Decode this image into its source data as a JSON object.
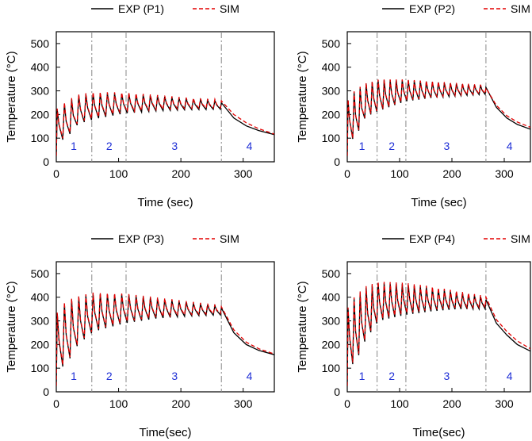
{
  "figure": {
    "colors": {
      "exp": "#000000",
      "sim": "#e30000",
      "phase_line": "#888888",
      "phase_label": "#1f2fd6"
    }
  },
  "chart_data": [
    {
      "type": "line",
      "panel": "P1",
      "xlabel": "Time (sec)",
      "ylabel": "Temperature (°C)",
      "xlim": [
        0,
        350
      ],
      "ylim": [
        0,
        550
      ],
      "xticks": [
        0,
        100,
        200,
        300
      ],
      "yticks": [
        0,
        100,
        200,
        300,
        400,
        500
      ],
      "legend": [
        "EXP (P1)",
        "SIM"
      ],
      "phase_boundaries": [
        57,
        112,
        265
      ],
      "phases": [
        {
          "label": "1",
          "x": 28
        },
        {
          "label": "2",
          "x": 85
        },
        {
          "label": "3",
          "x": 190
        },
        {
          "label": "4",
          "x": 310
        }
      ],
      "cycle_period": 11.5,
      "min_trend": [
        [
          0,
          90
        ],
        [
          15,
          95
        ],
        [
          35,
          160
        ],
        [
          60,
          180
        ],
        [
          110,
          205
        ],
        [
          160,
          215
        ],
        [
          210,
          220
        ],
        [
          262,
          222
        ]
      ],
      "max_trend": [
        [
          0,
          220
        ],
        [
          15,
          250
        ],
        [
          35,
          280
        ],
        [
          60,
          290
        ],
        [
          110,
          288
        ],
        [
          160,
          278
        ],
        [
          210,
          266
        ],
        [
          262,
          258
        ]
      ],
      "cooling": [
        [
          265,
          250
        ],
        [
          285,
          185
        ],
        [
          305,
          152
        ],
        [
          325,
          132
        ],
        [
          350,
          115
        ]
      ],
      "sim_cooling": [
        [
          265,
          258
        ],
        [
          285,
          200
        ],
        [
          305,
          165
        ],
        [
          325,
          140
        ],
        [
          350,
          117
        ]
      ],
      "sim_offset": 5
    },
    {
      "type": "line",
      "panel": "P2",
      "xlabel": "Time (sec)",
      "ylabel": "Temperature (°C)",
      "xlim": [
        0,
        350
      ],
      "ylim": [
        0,
        550
      ],
      "xticks": [
        0,
        100,
        200,
        300
      ],
      "yticks": [
        0,
        100,
        200,
        300,
        400,
        500
      ],
      "legend": [
        "EXP (P2)",
        "SIM"
      ],
      "phase_boundaries": [
        57,
        112,
        265
      ],
      "phases": [
        {
          "label": "1",
          "x": 28
        },
        {
          "label": "2",
          "x": 85
        },
        {
          "label": "3",
          "x": 190
        },
        {
          "label": "4",
          "x": 310
        }
      ],
      "cycle_period": 11.5,
      "min_trend": [
        [
          0,
          90
        ],
        [
          15,
          100
        ],
        [
          35,
          190
        ],
        [
          60,
          215
        ],
        [
          110,
          255
        ],
        [
          160,
          270
        ],
        [
          210,
          278
        ],
        [
          262,
          285
        ]
      ],
      "max_trend": [
        [
          0,
          260
        ],
        [
          15,
          300
        ],
        [
          35,
          330
        ],
        [
          60,
          345
        ],
        [
          110,
          345
        ],
        [
          160,
          338
        ],
        [
          210,
          330
        ],
        [
          262,
          322
        ]
      ],
      "cooling": [
        [
          265,
          315
        ],
        [
          285,
          230
        ],
        [
          305,
          185
        ],
        [
          325,
          158
        ],
        [
          350,
          138
        ]
      ],
      "sim_cooling": [
        [
          265,
          312
        ],
        [
          285,
          238
        ],
        [
          305,
          195
        ],
        [
          325,
          168
        ],
        [
          350,
          146
        ]
      ],
      "sim_offset": 3
    },
    {
      "type": "line",
      "panel": "P3",
      "xlabel": "Time(sec)",
      "ylabel": "Temperature (°C)",
      "xlim": [
        0,
        350
      ],
      "ylim": [
        0,
        550
      ],
      "xticks": [
        0,
        100,
        200,
        300
      ],
      "yticks": [
        0,
        100,
        200,
        300,
        400,
        500
      ],
      "legend": [
        "EXP (P3)",
        "SIM"
      ],
      "phase_boundaries": [
        57,
        112,
        265
      ],
      "phases": [
        {
          "label": "1",
          "x": 28
        },
        {
          "label": "2",
          "x": 85
        },
        {
          "label": "3",
          "x": 190
        },
        {
          "label": "4",
          "x": 310
        }
      ],
      "cycle_period": 11.5,
      "min_trend": [
        [
          0,
          100
        ],
        [
          15,
          110
        ],
        [
          35,
          200
        ],
        [
          60,
          255
        ],
        [
          110,
          290
        ],
        [
          160,
          310
        ],
        [
          210,
          320
        ],
        [
          262,
          325
        ]
      ],
      "max_trend": [
        [
          0,
          330
        ],
        [
          15,
          380
        ],
        [
          35,
          400
        ],
        [
          60,
          415
        ],
        [
          110,
          410
        ],
        [
          160,
          395
        ],
        [
          210,
          378
        ],
        [
          262,
          362
        ]
      ],
      "cooling": [
        [
          265,
          355
        ],
        [
          285,
          250
        ],
        [
          305,
          200
        ],
        [
          325,
          175
        ],
        [
          350,
          157
        ]
      ],
      "sim_cooling": [
        [
          265,
          360
        ],
        [
          285,
          262
        ],
        [
          305,
          210
        ],
        [
          325,
          182
        ],
        [
          350,
          160
        ]
      ],
      "sim_offset": 5
    },
    {
      "type": "line",
      "panel": "P4",
      "xlabel": "Time(sec)",
      "ylabel": "Temperature (°C)",
      "xlim": [
        0,
        350
      ],
      "ylim": [
        0,
        550
      ],
      "xticks": [
        0,
        100,
        200,
        300
      ],
      "yticks": [
        0,
        100,
        200,
        300,
        400,
        500
      ],
      "legend": [
        "EXP (P4)",
        "SIM"
      ],
      "phase_boundaries": [
        57,
        112,
        265
      ],
      "phases": [
        {
          "label": "1",
          "x": 28
        },
        {
          "label": "2",
          "x": 85
        },
        {
          "label": "3",
          "x": 190
        },
        {
          "label": "4",
          "x": 310
        }
      ],
      "cycle_period": 11.5,
      "min_trend": [
        [
          0,
          110
        ],
        [
          15,
          120
        ],
        [
          35,
          220
        ],
        [
          60,
          300
        ],
        [
          110,
          325
        ],
        [
          160,
          340
        ],
        [
          210,
          350
        ],
        [
          262,
          350
        ]
      ],
      "max_trend": [
        [
          0,
          350
        ],
        [
          15,
          400
        ],
        [
          35,
          440
        ],
        [
          60,
          460
        ],
        [
          110,
          455
        ],
        [
          160,
          440
        ],
        [
          210,
          420
        ],
        [
          262,
          400
        ]
      ],
      "cooling": [
        [
          265,
          390
        ],
        [
          285,
          290
        ],
        [
          305,
          240
        ],
        [
          325,
          200
        ],
        [
          350,
          172
        ]
      ],
      "sim_cooling": [
        [
          265,
          400
        ],
        [
          285,
          305
        ],
        [
          305,
          255
        ],
        [
          325,
          215
        ],
        [
          350,
          182
        ]
      ],
      "sim_offset": 6
    }
  ]
}
